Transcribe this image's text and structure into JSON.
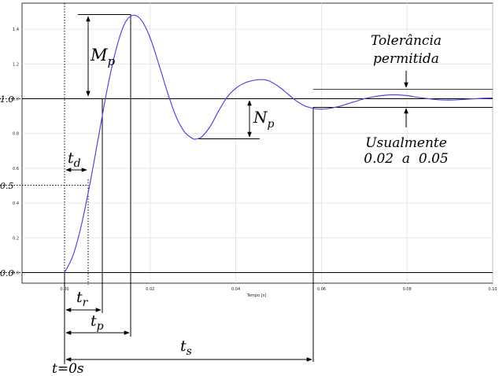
{
  "chart_data": {
    "type": "line",
    "xlabel": "Tempo [s]",
    "xlim": [
      -0.01,
      0.1
    ],
    "ylim": [
      -0.06,
      1.6
    ],
    "x_ticks": [
      "0.00",
      "0.02",
      "0.04",
      "0.06",
      "0.08",
      "0.10"
    ],
    "y_ticks": [
      "0.0",
      "0.2",
      "0.4",
      "0.6",
      "0.8",
      "1.0",
      "1.2",
      "1.4"
    ],
    "grid": true,
    "series": [
      {
        "color": "#4b4bdc",
        "x": [
          0.0,
          0.002,
          0.004,
          0.006,
          0.008,
          0.01,
          0.012,
          0.014,
          0.016,
          0.018,
          0.02,
          0.022,
          0.024,
          0.026,
          0.028,
          0.03,
          0.031,
          0.032,
          0.034,
          0.036,
          0.038,
          0.04,
          0.042,
          0.044,
          0.046,
          0.047,
          0.048,
          0.05,
          0.052,
          0.054,
          0.056,
          0.058,
          0.06,
          0.062,
          0.064,
          0.066,
          0.068,
          0.07,
          0.072,
          0.074,
          0.076,
          0.078,
          0.08,
          0.082,
          0.084,
          0.086,
          0.088,
          0.09,
          0.092,
          0.094,
          0.096,
          0.098,
          0.1
        ],
        "y": [
          0.0,
          0.1,
          0.28,
          0.52,
          0.79,
          1.06,
          1.28,
          1.43,
          1.48,
          1.45,
          1.35,
          1.2,
          1.04,
          0.9,
          0.81,
          0.77,
          0.77,
          0.78,
          0.84,
          0.93,
          1.01,
          1.06,
          1.09,
          1.105,
          1.11,
          1.108,
          1.1,
          1.07,
          1.03,
          0.99,
          0.96,
          0.945,
          0.94,
          0.945,
          0.955,
          0.97,
          0.985,
          1.0,
          1.01,
          1.018,
          1.022,
          1.022,
          1.018,
          1.01,
          1.003,
          0.997,
          0.993,
          0.992,
          0.994,
          0.997,
          1.0,
          1.003,
          1.004
        ]
      }
    ],
    "left_axis_labels": [
      "1.0",
      "0.5",
      "0.0"
    ],
    "annotations": {
      "mp": {
        "text": "M",
        "sub": "p"
      },
      "np": {
        "text": "N",
        "sub": "p"
      },
      "td": {
        "text": "t",
        "sub": "d"
      },
      "tr": {
        "text": "t",
        "sub": "r"
      },
      "tp": {
        "text": "t",
        "sub": "p"
      },
      "ts": {
        "text": "t",
        "sub": "s"
      },
      "t0": "t=0s",
      "tol_line1": "Tolerância",
      "tol_line2": "permitida",
      "usual_line1": "Usualmente",
      "usual_line2": "0.02  a  0.05"
    }
  }
}
